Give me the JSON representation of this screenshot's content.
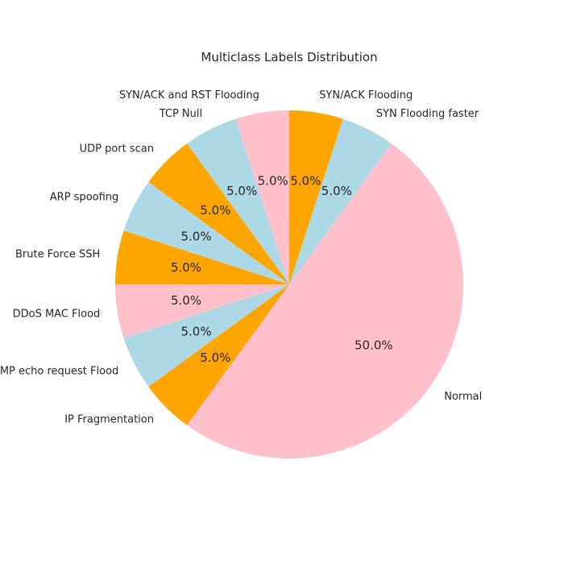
{
  "chart_data": {
    "type": "pie",
    "title": "Multiclass Labels Distribution",
    "start_angle": 90,
    "direction": "counterclockwise",
    "slices": [
      {
        "label": "SYN/ACK and RST Flooding",
        "value": 5.0,
        "pct_label": "5.0%",
        "color": "#ffc0cb"
      },
      {
        "label": "TCP Null",
        "value": 5.0,
        "pct_label": "5.0%",
        "color": "#add8e6"
      },
      {
        "label": "UDP port scan",
        "value": 5.0,
        "pct_label": "5.0%",
        "color": "#ffa500"
      },
      {
        "label": "ARP spoofing",
        "value": 5.0,
        "pct_label": "5.0%",
        "color": "#add8e6"
      },
      {
        "label": "Brute Force SSH",
        "value": 5.0,
        "pct_label": "5.0%",
        "color": "#ffa500"
      },
      {
        "label": "DDoS MAC Flood",
        "value": 5.0,
        "pct_label": "5.0%",
        "color": "#ffc0cb"
      },
      {
        "label": "ICMP echo request Flood",
        "value": 5.0,
        "pct_label": "5.0%",
        "color": "#add8e6"
      },
      {
        "label": "IP Fragmentation",
        "value": 5.0,
        "pct_label": "5.0%",
        "color": "#ffa500"
      },
      {
        "label": "Normal",
        "value": 50.0,
        "pct_label": "50.0%",
        "color": "#ffc0cb"
      },
      {
        "label": "SYN Flooding faster",
        "value": 5.0,
        "pct_label": "5.0%",
        "color": "#add8e6"
      },
      {
        "label": "SYN/ACK Flooding",
        "value": 5.0,
        "pct_label": "5.0%",
        "color": "#ffa500"
      }
    ]
  }
}
